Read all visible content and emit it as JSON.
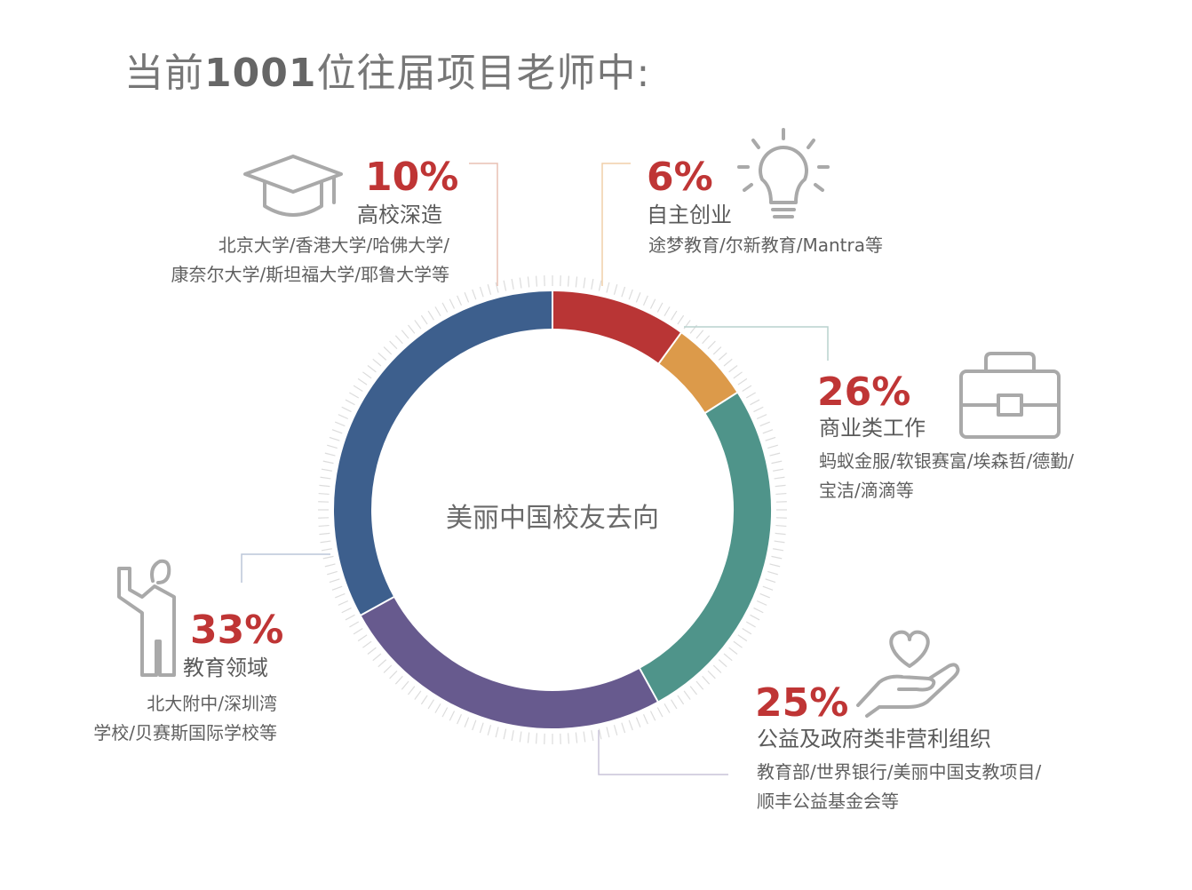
{
  "page": {
    "title_prefix": "当前",
    "title_number": "1001",
    "title_suffix": "位往届项目老师中:"
  },
  "chart_data": {
    "type": "pie",
    "variant": "donut",
    "center_label": "美丽中国校友去向",
    "categories": [
      "高校深造",
      "自主创业",
      "商业类工作",
      "公益及政府类非营利组织",
      "教育领域"
    ],
    "values": [
      10,
      6,
      26,
      25,
      33
    ],
    "labels": [
      "10%",
      "6%",
      "26%",
      "25%",
      "33%"
    ],
    "colors": [
      "#b93535",
      "#dc9a4a",
      "#4f948a",
      "#675a8e",
      "#3d5f8d"
    ],
    "annotations": [
      [
        "北京大学/香港大学/哈佛大学/",
        "康奈尔大学/斯坦福大学/耶鲁大学等"
      ],
      [
        "途梦教育/尔新教育/Mantra等"
      ],
      [
        "蚂蚁金服/软银赛富/埃森哲/德勤/",
        "宝洁/滴滴等"
      ],
      [
        "教育部/世界银行/美丽中国支教项目/",
        "顺丰公益基金会等"
      ],
      [
        "北大附中/深圳湾",
        "学校/贝赛斯国际学校等"
      ]
    ],
    "icons": [
      "graduation-cap-icon",
      "lightbulb-icon",
      "briefcase-icon",
      "heart-hand-icon",
      "teacher-icon"
    ]
  }
}
